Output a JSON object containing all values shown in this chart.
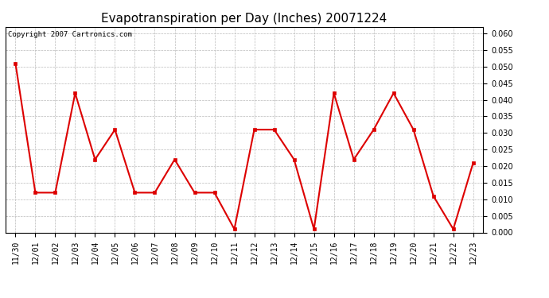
{
  "title": "Evapotranspiration per Day (Inches) 20071224",
  "copyright_text": "Copyright 2007 Cartronics.com",
  "labels": [
    "11/30",
    "12/01",
    "12/02",
    "12/03",
    "12/04",
    "12/05",
    "12/06",
    "12/07",
    "12/08",
    "12/09",
    "12/10",
    "12/11",
    "12/12",
    "12/13",
    "12/14",
    "12/15",
    "12/16",
    "12/17",
    "12/18",
    "12/19",
    "12/20",
    "12/21",
    "12/22",
    "12/23"
  ],
  "values": [
    0.051,
    0.012,
    0.012,
    0.042,
    0.022,
    0.031,
    0.012,
    0.012,
    0.022,
    0.012,
    0.012,
    0.001,
    0.031,
    0.031,
    0.022,
    0.001,
    0.042,
    0.022,
    0.031,
    0.042,
    0.031,
    0.011,
    0.001,
    0.021
  ],
  "line_color": "#dd0000",
  "marker": "s",
  "marker_size": 2.5,
  "ylim": [
    0.0,
    0.062
  ],
  "ytick_min": 0.0,
  "ytick_max": 0.06,
  "ytick_step": 0.005,
  "grid_color": "#bbbbbb",
  "bg_color": "#ffffff",
  "plot_bg_color": "#ffffff",
  "title_fontsize": 11,
  "copyright_fontsize": 6.5,
  "tick_fontsize": 7,
  "line_width": 1.5
}
